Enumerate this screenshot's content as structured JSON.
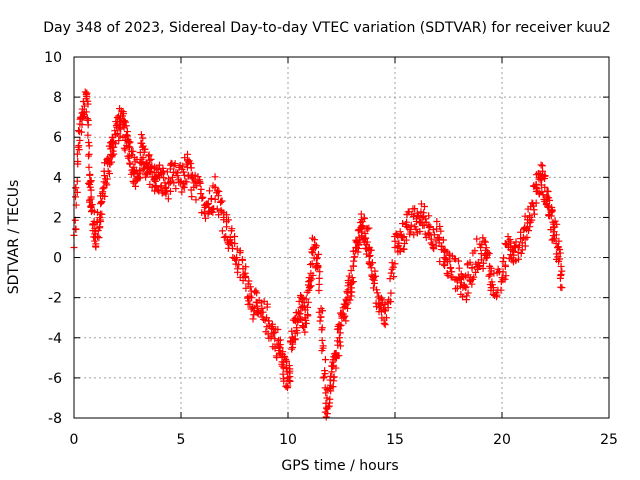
{
  "chart_data": {
    "type": "scatter",
    "title": "Day 348 of 2023, Sidereal Day-to-day VTEC variation (SDTVAR) for receiver kuu2",
    "xlabel": "GPS time / hours",
    "ylabel": "SDTVAR / TECUs",
    "xlim": [
      0,
      25
    ],
    "ylim": [
      -8,
      10
    ],
    "x_ticks": [
      "0",
      "5",
      "10",
      "15",
      "20",
      "25"
    ],
    "y_ticks": [
      "-8",
      "-6",
      "-4",
      "-2",
      "0",
      "2",
      "4",
      "6",
      "8",
      "10"
    ],
    "grid": true,
    "marker": "+",
    "series": [
      {
        "name": "SDTVAR",
        "color": "#ff0000",
        "x": [
          0.0,
          0.2,
          0.4,
          0.6,
          0.7,
          0.8,
          1.0,
          1.2,
          1.4,
          1.6,
          1.8,
          2.0,
          2.2,
          2.4,
          2.6,
          2.8,
          3.0,
          3.2,
          3.4,
          3.6,
          3.8,
          4.0,
          4.3,
          4.6,
          5.0,
          5.3,
          5.6,
          6.0,
          6.3,
          6.6,
          7.0,
          7.3,
          7.6,
          8.0,
          8.3,
          8.6,
          9.0,
          9.3,
          9.6,
          9.8,
          10.0,
          10.2,
          10.4,
          10.6,
          10.8,
          11.0,
          11.2,
          11.4,
          11.6,
          11.8,
          12.0,
          12.2,
          12.4,
          12.6,
          12.8,
          13.0,
          13.2,
          13.4,
          13.6,
          13.8,
          14.0,
          14.3,
          14.6,
          15.0,
          15.3,
          15.6,
          16.0,
          16.3,
          16.6,
          17.0,
          17.3,
          17.6,
          18.0,
          18.3,
          18.6,
          19.0,
          19.3,
          19.6,
          20.0,
          20.3,
          20.6,
          21.0,
          21.3,
          21.6,
          21.8,
          22.0,
          22.2,
          22.4,
          22.6,
          22.8
        ],
        "values": [
          0.5,
          5.5,
          7.0,
          8.2,
          4.5,
          2.5,
          1.0,
          2.0,
          3.5,
          4.8,
          5.5,
          6.5,
          6.8,
          6.0,
          5.5,
          4.5,
          4.0,
          5.5,
          4.2,
          4.5,
          3.8,
          4.0,
          3.5,
          4.0,
          3.8,
          4.5,
          3.5,
          3.0,
          2.5,
          3.5,
          2.0,
          1.0,
          0.0,
          -1.0,
          -2.0,
          -2.8,
          -3.0,
          -3.8,
          -4.5,
          -5.5,
          -6.0,
          -4.0,
          -3.5,
          -2.5,
          -3.0,
          -1.5,
          0.5,
          -0.5,
          -3.5,
          -7.5,
          -6.5,
          -5.0,
          -4.0,
          -3.0,
          -2.0,
          -1.0,
          0.5,
          1.5,
          1.2,
          0.5,
          -1.0,
          -2.5,
          -3.0,
          0.5,
          1.0,
          1.5,
          1.8,
          2.0,
          1.5,
          1.0,
          0.0,
          -0.5,
          -1.0,
          -1.5,
          -0.5,
          0.5,
          0.0,
          -1.5,
          -1.0,
          0.5,
          0.5,
          1.0,
          2.0,
          3.5,
          4.0,
          3.5,
          2.5,
          1.5,
          0.5,
          -1.5
        ]
      }
    ]
  }
}
